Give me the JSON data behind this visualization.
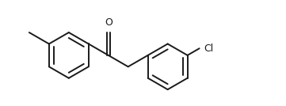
{
  "background_color": "#ffffff",
  "line_color": "#1a1a1a",
  "line_width": 1.4,
  "text_color": "#1a1a1a",
  "label_O": "O",
  "label_Cl": "Cl",
  "figsize": [
    3.61,
    1.34
  ],
  "dpi": 100,
  "xlim": [
    -2.0,
    8.5
  ],
  "ylim": [
    -2.2,
    2.4
  ]
}
